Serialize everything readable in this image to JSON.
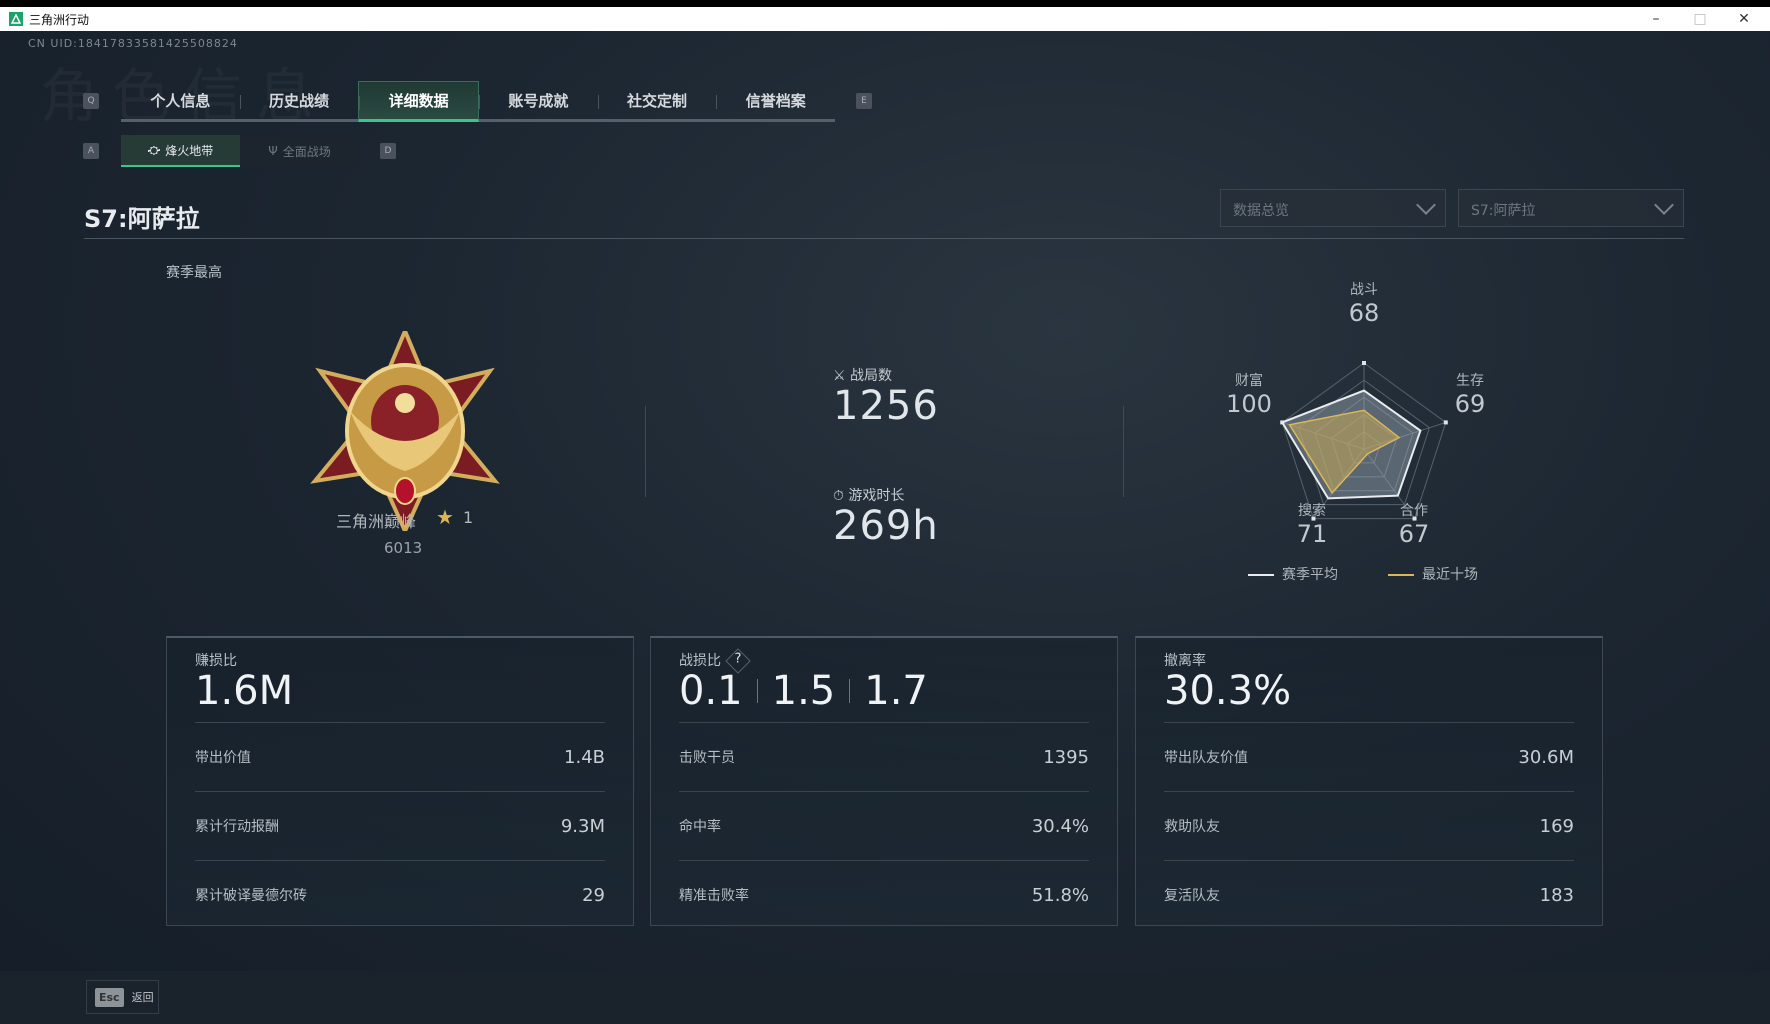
{
  "window": {
    "title": "三角洲行动",
    "minimize": "–",
    "maximize": "□",
    "close": "✕"
  },
  "uid": "CN UID:18417833581425508824",
  "watermark": "角色信息",
  "tabs": {
    "prev_key": "Q",
    "next_key": "E",
    "items": [
      {
        "label": "个人信息"
      },
      {
        "label": "历史战绩"
      },
      {
        "label": "详细数据",
        "active": true
      },
      {
        "label": "账号成就"
      },
      {
        "label": "社交定制"
      },
      {
        "label": "信誉档案"
      }
    ]
  },
  "subtabs": {
    "prev_key": "A",
    "next_key": "D",
    "items": [
      {
        "label": "烽火地带",
        "icon": "rig-icon",
        "active": true
      },
      {
        "label": "全面战场",
        "icon": "antenna-icon"
      }
    ]
  },
  "season_title": "S7:阿萨拉",
  "filters": {
    "view": "数据总览",
    "season": "S7:阿萨拉"
  },
  "season_best": {
    "label": "赛季最高",
    "rank_name": "三角洲巅峰",
    "stars": "1",
    "score": "6013"
  },
  "summary": {
    "matches_label": "战局数",
    "matches": "1256",
    "playtime_label": "游戏时长",
    "playtime": "269h"
  },
  "accent": "#3cc48a",
  "chart_data": {
    "type": "radar",
    "axes": [
      "战斗",
      "生存",
      "合作",
      "搜索",
      "财富"
    ],
    "range": [
      0,
      100
    ],
    "series": [
      {
        "name": "赛季平均",
        "color": "#e8ecef",
        "values": [
          68,
          69,
          67,
          71,
          100
        ]
      },
      {
        "name": "最近十场",
        "color": "#d9b85a",
        "values": [
          45,
          43,
          7,
          63,
          91
        ]
      }
    ]
  },
  "cards": [
    {
      "title": "赚损比",
      "big": [
        "1.6M"
      ],
      "rows": [
        {
          "label": "带出价值",
          "value": "1.4B"
        },
        {
          "label": "累计行动报酬",
          "value": "9.3M"
        },
        {
          "label": "累计破译曼德尔砖",
          "value": "29"
        }
      ]
    },
    {
      "title": "战损比",
      "help": "?",
      "big": [
        "0.1",
        "1.5",
        "1.7"
      ],
      "rows": [
        {
          "label": "击败干员",
          "value": "1395"
        },
        {
          "label": "命中率",
          "value": "30.4%"
        },
        {
          "label": "精准击败率",
          "value": "51.8%"
        }
      ]
    },
    {
      "title": "撤离率",
      "big": [
        "30.3%"
      ],
      "rows": [
        {
          "label": "带出队友价值",
          "value": "30.6M"
        },
        {
          "label": "救助队友",
          "value": "169"
        },
        {
          "label": "复活队友",
          "value": "183"
        }
      ]
    }
  ],
  "footer": {
    "esc_key": "Esc",
    "back_label": "返回"
  }
}
